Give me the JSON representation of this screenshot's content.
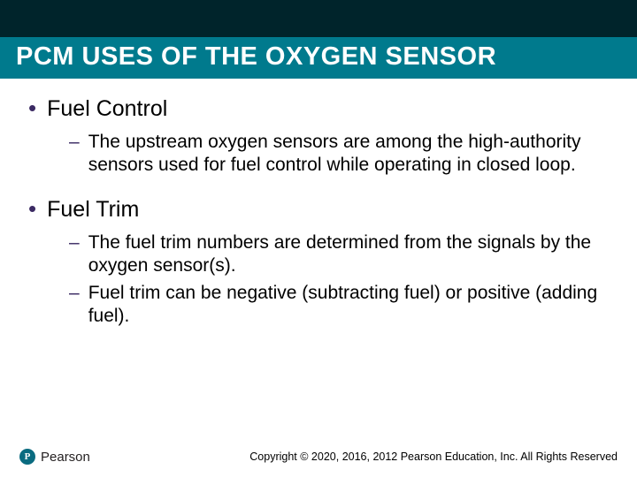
{
  "colors": {
    "header_bg": "#00242b",
    "title_bg": "#007a8d",
    "title_text": "#ffffff",
    "bullet_marker": "#3b2a63",
    "body_text": "#000000",
    "logo_circle": "#0a6b80",
    "logo_text": "#231f20",
    "page_bg": "#ffffff"
  },
  "typography": {
    "title_fontsize": 29,
    "bullet1_fontsize": 25,
    "bullet2_fontsize": 21,
    "copyright_fontsize": 12.5,
    "logo_text_fontsize": 15,
    "font_family": "Arial"
  },
  "title": "PCM USES OF THE OXYGEN SENSOR",
  "sections": [
    {
      "heading": "Fuel Control",
      "items": [
        "The upstream oxygen sensors are among the high-authority sensors used for fuel control while operating in closed loop."
      ]
    },
    {
      "heading": "Fuel Trim",
      "items": [
        "The fuel trim numbers are determined from the signals by the oxygen sensor(s).",
        "Fuel trim can be negative (subtracting fuel) or positive (adding fuel)."
      ]
    }
  ],
  "logo": {
    "mark_letter": "P",
    "brand": "Pearson"
  },
  "copyright": "Copyright © 2020, 2016, 2012 Pearson Education, Inc. All Rights Reserved"
}
